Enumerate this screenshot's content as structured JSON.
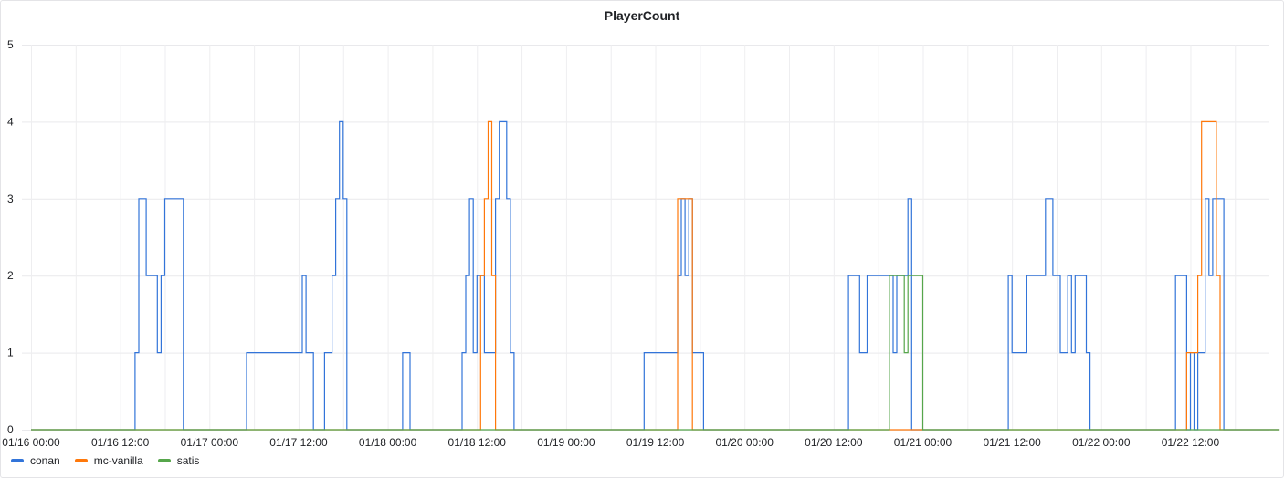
{
  "chart_data": {
    "type": "line",
    "title": "PlayerCount",
    "xlabel": "",
    "ylabel": "",
    "ylim": [
      0,
      5
    ],
    "xlim": [
      "01/16 00:00",
      "01/23 00:00"
    ],
    "yticks": [
      "0",
      "1",
      "2",
      "3",
      "4",
      "5"
    ],
    "xticks": [
      "01/16 00:00",
      "01/16 12:00",
      "01/17 00:00",
      "01/17 12:00",
      "01/18 00:00",
      "01/18 12:00",
      "01/19 00:00",
      "01/19 12:00",
      "01/20 00:00",
      "01/20 12:00",
      "01/21 00:00",
      "01/21 12:00",
      "01/22 00:00",
      "01/22 12:00"
    ],
    "grid": true,
    "legend_position": "bottom-left",
    "series": [
      {
        "name": "conan",
        "color": "#3274d9",
        "points": [
          [
            "01/16 00:00",
            0
          ],
          [
            "01/16 14:00",
            0
          ],
          [
            "01/16 14:00",
            1
          ],
          [
            "01/16 14:30",
            1
          ],
          [
            "01/16 14:30",
            3
          ],
          [
            "01/16 15:30",
            3
          ],
          [
            "01/16 15:30",
            2
          ],
          [
            "01/16 17:00",
            2
          ],
          [
            "01/16 17:00",
            1
          ],
          [
            "01/16 17:30",
            1
          ],
          [
            "01/16 17:30",
            2
          ],
          [
            "01/16 18:00",
            2
          ],
          [
            "01/16 18:00",
            3
          ],
          [
            "01/16 20:30",
            3
          ],
          [
            "01/16 20:30",
            0
          ],
          [
            "01/17 05:00",
            0
          ],
          [
            "01/17 05:00",
            1
          ],
          [
            "01/17 12:30",
            1
          ],
          [
            "01/17 12:30",
            2
          ],
          [
            "01/17 13:00",
            2
          ],
          [
            "01/17 13:00",
            1
          ],
          [
            "01/17 14:00",
            1
          ],
          [
            "01/17 14:00",
            0
          ],
          [
            "01/17 15:30",
            0
          ],
          [
            "01/17 15:30",
            1
          ],
          [
            "01/17 16:30",
            1
          ],
          [
            "01/17 16:30",
            2
          ],
          [
            "01/17 17:00",
            2
          ],
          [
            "01/17 17:00",
            3
          ],
          [
            "01/17 17:30",
            3
          ],
          [
            "01/17 17:30",
            4
          ],
          [
            "01/17 18:00",
            4
          ],
          [
            "01/17 18:00",
            3
          ],
          [
            "01/17 18:30",
            3
          ],
          [
            "01/17 18:30",
            0
          ],
          [
            "01/18 02:00",
            0
          ],
          [
            "01/18 02:00",
            1
          ],
          [
            "01/18 03:00",
            1
          ],
          [
            "01/18 03:00",
            0
          ],
          [
            "01/18 10:00",
            0
          ],
          [
            "01/18 10:00",
            1
          ],
          [
            "01/18 10:30",
            1
          ],
          [
            "01/18 10:30",
            2
          ],
          [
            "01/18 11:00",
            2
          ],
          [
            "01/18 11:00",
            3
          ],
          [
            "01/18 11:30",
            3
          ],
          [
            "01/18 11:30",
            1
          ],
          [
            "01/18 12:00",
            1
          ],
          [
            "01/18 12:00",
            2
          ],
          [
            "01/18 13:00",
            2
          ],
          [
            "01/18 13:00",
            1
          ],
          [
            "01/18 14:30",
            1
          ],
          [
            "01/18 14:30",
            3
          ],
          [
            "01/18 15:00",
            3
          ],
          [
            "01/18 15:00",
            4
          ],
          [
            "01/18 16:00",
            4
          ],
          [
            "01/18 16:00",
            3
          ],
          [
            "01/18 16:30",
            3
          ],
          [
            "01/18 16:30",
            1
          ],
          [
            "01/18 17:00",
            1
          ],
          [
            "01/18 17:00",
            0
          ],
          [
            "01/19 10:30",
            0
          ],
          [
            "01/19 10:30",
            1
          ],
          [
            "01/19 15:00",
            1
          ],
          [
            "01/19 15:00",
            2
          ],
          [
            "01/19 15:30",
            2
          ],
          [
            "01/19 15:30",
            3
          ],
          [
            "01/19 16:00",
            3
          ],
          [
            "01/19 16:00",
            2
          ],
          [
            "01/19 16:30",
            2
          ],
          [
            "01/19 16:30",
            3
          ],
          [
            "01/19 17:00",
            3
          ],
          [
            "01/19 17:00",
            1
          ],
          [
            "01/19 18:30",
            1
          ],
          [
            "01/19 18:30",
            0
          ],
          [
            "01/20 14:00",
            0
          ],
          [
            "01/20 14:00",
            2
          ],
          [
            "01/20 15:30",
            2
          ],
          [
            "01/20 15:30",
            1
          ],
          [
            "01/20 16:30",
            1
          ],
          [
            "01/20 16:30",
            2
          ],
          [
            "01/20 20:00",
            2
          ],
          [
            "01/20 20:00",
            1
          ],
          [
            "01/20 20:30",
            1
          ],
          [
            "01/20 20:30",
            2
          ],
          [
            "01/20 22:00",
            2
          ],
          [
            "01/20 22:00",
            3
          ],
          [
            "01/20 22:30",
            3
          ],
          [
            "01/20 22:30",
            0
          ],
          [
            "01/21 11:30",
            0
          ],
          [
            "01/21 11:30",
            2
          ],
          [
            "01/21 12:00",
            2
          ],
          [
            "01/21 12:00",
            1
          ],
          [
            "01/21 14:00",
            1
          ],
          [
            "01/21 14:00",
            2
          ],
          [
            "01/21 16:30",
            2
          ],
          [
            "01/21 16:30",
            3
          ],
          [
            "01/21 17:30",
            3
          ],
          [
            "01/21 17:30",
            2
          ],
          [
            "01/21 18:30",
            2
          ],
          [
            "01/21 18:30",
            1
          ],
          [
            "01/21 19:30",
            1
          ],
          [
            "01/21 19:30",
            2
          ],
          [
            "01/21 20:00",
            2
          ],
          [
            "01/21 20:00",
            1
          ],
          [
            "01/21 20:30",
            1
          ],
          [
            "01/21 20:30",
            2
          ],
          [
            "01/21 22:00",
            2
          ],
          [
            "01/21 22:00",
            1
          ],
          [
            "01/21 22:30",
            1
          ],
          [
            "01/21 22:30",
            0
          ],
          [
            "01/22 10:00",
            0
          ],
          [
            "01/22 10:00",
            2
          ],
          [
            "01/22 11:30",
            2
          ],
          [
            "01/22 11:30",
            0
          ],
          [
            "01/22 12:00",
            0
          ],
          [
            "01/22 12:00",
            1
          ],
          [
            "01/22 12:30",
            1
          ],
          [
            "01/22 12:30",
            0
          ],
          [
            "01/22 13:00",
            0
          ],
          [
            "01/22 13:00",
            1
          ],
          [
            "01/22 14:00",
            1
          ],
          [
            "01/22 14:00",
            3
          ],
          [
            "01/22 14:30",
            3
          ],
          [
            "01/22 14:30",
            2
          ],
          [
            "01/22 15:00",
            2
          ],
          [
            "01/22 15:00",
            3
          ],
          [
            "01/22 16:30",
            3
          ],
          [
            "01/22 16:30",
            0
          ],
          [
            "01/23 00:00",
            0
          ]
        ]
      },
      {
        "name": "mc-vanilla",
        "color": "#ff780a",
        "points": [
          [
            "01/16 00:00",
            0
          ],
          [
            "01/18 12:30",
            0
          ],
          [
            "01/18 12:30",
            2
          ],
          [
            "01/18 13:00",
            2
          ],
          [
            "01/18 13:00",
            3
          ],
          [
            "01/18 13:30",
            3
          ],
          [
            "01/18 13:30",
            4
          ],
          [
            "01/18 14:00",
            4
          ],
          [
            "01/18 14:00",
            2
          ],
          [
            "01/18 14:30",
            2
          ],
          [
            "01/18 14:30",
            0
          ],
          [
            "01/19 15:00",
            0
          ],
          [
            "01/19 15:00",
            3
          ],
          [
            "01/19 17:00",
            3
          ],
          [
            "01/19 17:00",
            0
          ],
          [
            "01/22 11:30",
            0
          ],
          [
            "01/22 11:30",
            1
          ],
          [
            "01/22 13:00",
            1
          ],
          [
            "01/22 13:00",
            2
          ],
          [
            "01/22 13:30",
            2
          ],
          [
            "01/22 13:30",
            4
          ],
          [
            "01/22 15:30",
            4
          ],
          [
            "01/22 15:30",
            2
          ],
          [
            "01/22 16:00",
            2
          ],
          [
            "01/22 16:00",
            0
          ],
          [
            "01/23 00:00",
            0
          ]
        ]
      },
      {
        "name": "satis",
        "color": "#56a64b",
        "points": [
          [
            "01/16 00:00",
            0
          ],
          [
            "01/20 19:30",
            0
          ],
          [
            "01/20 19:30",
            2
          ],
          [
            "01/20 21:30",
            2
          ],
          [
            "01/20 21:30",
            1
          ],
          [
            "01/20 22:00",
            1
          ],
          [
            "01/20 22:00",
            2
          ],
          [
            "01/21 00:00",
            2
          ],
          [
            "01/21 00:00",
            0
          ],
          [
            "01/23 00:00",
            0
          ]
        ]
      }
    ]
  }
}
